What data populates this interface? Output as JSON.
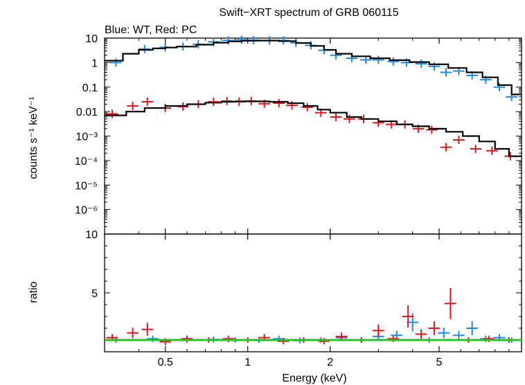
{
  "chart_data": {
    "type": "scatter",
    "title": "Swift−XRT spectrum of GRB 060115",
    "subtitle": "Blue: WT, Red: PC",
    "xlabel": "Energy (keV)",
    "xscale": "log",
    "xlim": [
      0.3,
      10
    ],
    "x_ticks": [
      "0.5",
      "1",
      "2",
      "5"
    ],
    "x_tick_values": [
      0.5,
      1,
      2,
      5
    ],
    "top_panel": {
      "ylabel": "counts s⁻¹ keV⁻¹",
      "yscale": "log",
      "ylim": [
        1e-07,
        10
      ],
      "y_tick_labels": [
        "10",
        "1",
        "0.1",
        "0.01",
        "10⁻³",
        "10⁻⁴",
        "10⁻⁵",
        "10⁻⁶"
      ],
      "y_tick_values": [
        10,
        1,
        0.1,
        0.01,
        0.001,
        0.0001,
        1e-05,
        1e-06
      ],
      "series": [
        {
          "name": "WT data",
          "color": "#1e88e5",
          "kind": "data",
          "x": [
            0.33,
            0.42,
            0.5,
            0.58,
            0.66,
            0.75,
            0.85,
            0.95,
            1.05,
            1.2,
            1.35,
            1.5,
            1.7,
            1.9,
            2.1,
            2.4,
            2.7,
            3.0,
            3.4,
            3.8,
            4.3,
            4.8,
            5.3,
            5.9,
            6.6,
            7.4,
            8.3,
            9.2
          ],
          "y": [
            1.0,
            3.6,
            4.2,
            4.5,
            5.5,
            7.0,
            8.0,
            8.5,
            8.2,
            8.0,
            8.0,
            6.5,
            5.0,
            3.2,
            2.0,
            1.5,
            1.3,
            1.3,
            1.1,
            1.0,
            0.9,
            0.7,
            0.4,
            0.45,
            0.3,
            0.2,
            0.1,
            0.04
          ]
        },
        {
          "name": "PC data",
          "color": "#e8141b",
          "kind": "data",
          "x": [
            0.32,
            0.38,
            0.43,
            0.5,
            0.58,
            0.66,
            0.75,
            0.84,
            0.93,
            1.03,
            1.15,
            1.3,
            1.45,
            1.65,
            1.85,
            2.1,
            2.35,
            2.65,
            3.0,
            3.35,
            3.75,
            4.2,
            4.7,
            5.3,
            5.9,
            6.8,
            7.8,
            9.1
          ],
          "y": [
            0.008,
            0.017,
            0.025,
            0.014,
            0.016,
            0.02,
            0.025,
            0.027,
            0.025,
            0.027,
            0.021,
            0.022,
            0.018,
            0.015,
            0.009,
            0.006,
            0.005,
            0.005,
            0.0035,
            0.003,
            0.003,
            0.002,
            0.0018,
            0.00035,
            0.0007,
            0.0003,
            0.00025,
            0.00015
          ]
        },
        {
          "name": "WT model",
          "color": "#000000",
          "kind": "model",
          "x": [
            0.3,
            0.35,
            0.4,
            0.45,
            0.5,
            0.55,
            0.65,
            0.75,
            0.85,
            0.95,
            1.1,
            1.3,
            1.5,
            1.7,
            1.9,
            2.1,
            2.4,
            2.8,
            3.3,
            3.9,
            4.6,
            5.4,
            6.3,
            7.2,
            8.2,
            9.2,
            10
          ],
          "y": [
            1.2,
            2.3,
            3.3,
            3.8,
            4.1,
            4.5,
            5.4,
            6.5,
            7.3,
            7.8,
            7.9,
            7.5,
            6.3,
            4.8,
            3.3,
            2.3,
            1.8,
            1.5,
            1.25,
            1.05,
            0.85,
            0.6,
            0.4,
            0.25,
            0.12,
            0.05,
            0.04
          ]
        },
        {
          "name": "PC model",
          "color": "#000000",
          "kind": "model",
          "x": [
            0.3,
            0.36,
            0.42,
            0.5,
            0.6,
            0.7,
            0.8,
            0.9,
            1.0,
            1.2,
            1.4,
            1.6,
            1.8,
            2.0,
            2.3,
            2.6,
            3.0,
            3.5,
            4.0,
            4.6,
            5.3,
            6.1,
            7.0,
            8.0,
            9.0,
            10
          ],
          "y": [
            0.007,
            0.01,
            0.014,
            0.017,
            0.02,
            0.023,
            0.025,
            0.026,
            0.026,
            0.025,
            0.022,
            0.017,
            0.012,
            0.009,
            0.006,
            0.005,
            0.004,
            0.003,
            0.0025,
            0.002,
            0.0015,
            0.001,
            0.0006,
            0.0003,
            0.00015,
            0.0001
          ]
        }
      ]
    },
    "bottom_panel": {
      "ylabel": "ratio",
      "yscale": "linear",
      "ylim": [
        0,
        10
      ],
      "y_tick_labels": [
        "10",
        "5"
      ],
      "y_tick_values": [
        10,
        5
      ],
      "reference_line": {
        "value": 1,
        "color": "#22c522"
      },
      "series": [
        {
          "name": "WT ratio",
          "color": "#1e88e5",
          "x": [
            0.33,
            0.45,
            0.6,
            0.75,
            0.9,
            1.1,
            1.3,
            1.55,
            1.85,
            2.2,
            2.6,
            3.0,
            3.5,
            4.0,
            4.6,
            5.2,
            5.9,
            6.6,
            7.4,
            8.3,
            9.2
          ],
          "y": [
            1.0,
            1.1,
            1.0,
            1.05,
            1.0,
            1.0,
            1.1,
            0.95,
            1.0,
            1.2,
            1.0,
            1.3,
            1.4,
            2.5,
            1.0,
            1.6,
            1.4,
            2.0,
            1.1,
            1.2,
            1.0
          ]
        },
        {
          "name": "PC ratio",
          "color": "#e8141b",
          "x": [
            0.32,
            0.38,
            0.43,
            0.5,
            0.6,
            0.72,
            0.85,
            1.0,
            1.15,
            1.35,
            1.6,
            1.9,
            2.2,
            2.6,
            3.0,
            3.4,
            3.85,
            4.3,
            4.8,
            5.5,
            6.4,
            7.6,
            9.0
          ],
          "y": [
            1.2,
            1.6,
            1.9,
            0.85,
            1.1,
            1.0,
            1.1,
            1.0,
            1.2,
            0.9,
            1.0,
            0.9,
            1.3,
            1.0,
            1.8,
            1.1,
            3.0,
            1.5,
            2.0,
            4.1,
            1.0,
            1.1,
            1.0
          ]
        }
      ]
    }
  }
}
